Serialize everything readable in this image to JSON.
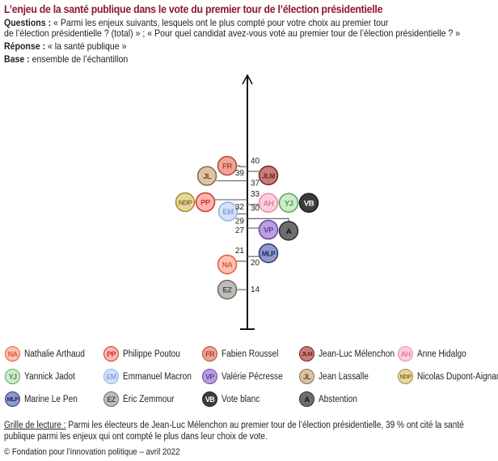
{
  "header": {
    "title": "L’enjeu de la santé publique dans le vote du premier tour de l’élection présidentielle",
    "questions_label": "Questions :",
    "questions_line1": " « Parmi les enjeux suivants, lesquels ont le plus compté pour votre choix au premier tour",
    "questions_line2": "de l’élection présidentielle ? (total) » ; « Pour quel candidat avez-vous voté au premier tour de l’élection présidentielle ? »",
    "response_label": "Réponse :",
    "response_text": " « la santé publique »",
    "base_label": "Base :",
    "base_text": " ensemble de l’échantillon"
  },
  "chart_data": {
    "type": "scatter",
    "title": "L’enjeu de la santé publique dans le vote du premier tour de l’élection présidentielle",
    "unit": "%",
    "axis": "vertical",
    "points": [
      {
        "code": "JLM",
        "name": "Jean-Luc Mélenchon",
        "value": 39,
        "side": "right"
      },
      {
        "code": "FR",
        "name": "Fabien Roussel",
        "value": 40,
        "side": "left"
      },
      {
        "code": "JL",
        "name": "Jean Lassalle",
        "value": 37,
        "side": "left"
      },
      {
        "code": "PP",
        "name": "Philippe Poutou",
        "value": 33,
        "side": "left"
      },
      {
        "code": "NDP",
        "name": "Nicolas Dupont-Aignan",
        "value": 33,
        "side": "left"
      },
      {
        "code": "AH",
        "name": "Anne Hidalgo",
        "value": 32,
        "side": "right"
      },
      {
        "code": "YJ",
        "name": "Yannick Jadot",
        "value": 32,
        "side": "right"
      },
      {
        "code": "VB",
        "name": "Vote blanc",
        "value": 32,
        "side": "right"
      },
      {
        "code": "EM",
        "name": "Emmanuel Macron",
        "value": 30,
        "side": "left"
      },
      {
        "code": "A",
        "name": "Abstention",
        "value": 29,
        "side": "right"
      },
      {
        "code": "VP",
        "name": "Valérie Pécresse",
        "value": 27,
        "side": "right"
      },
      {
        "code": "NA",
        "name": "Nathalie Arthaud",
        "value": 20,
        "side": "left"
      },
      {
        "code": "MLP",
        "name": "Marine Le Pen",
        "value": 21,
        "side": "right"
      },
      {
        "code": "EZ",
        "name": "Éric Zemmour",
        "value": 14,
        "side": "left"
      }
    ],
    "labels": [
      {
        "text": "40",
        "value": 40,
        "side": "right"
      },
      {
        "text": "39",
        "value": 39,
        "side": "left"
      },
      {
        "text": "37",
        "value": 37,
        "side": "right"
      },
      {
        "text": "33",
        "value": 33,
        "side": "right"
      },
      {
        "text": "32",
        "value": 32,
        "side": "left"
      },
      {
        "text": "30",
        "value": 30,
        "side": "right"
      },
      {
        "text": "29",
        "value": 29,
        "side": "left"
      },
      {
        "text": "27",
        "value": 27,
        "side": "left"
      },
      {
        "text": "21",
        "value": 21,
        "side": "left"
      },
      {
        "text": "20",
        "value": 20,
        "side": "right"
      },
      {
        "text": "14",
        "value": 14,
        "side": "right"
      }
    ]
  },
  "candidates": {
    "NA": {
      "code": "NA",
      "name": "Nathalie Arthaud",
      "fill": "#f9c3b3",
      "stroke": "#e5593c",
      "text": "#e5593c"
    },
    "PP": {
      "code": "PP",
      "name": "Philippe Poutou",
      "fill": "#f8b7b4",
      "stroke": "#d9312b",
      "text": "#d9312b"
    },
    "FR": {
      "code": "FR",
      "name": "Fabien Roussel",
      "fill": "#eba596",
      "stroke": "#b84530",
      "text": "#b84530"
    },
    "JLM": {
      "code": "JLM",
      "name": "Jean-Luc Mélenchon",
      "fill": "#c57f78",
      "stroke": "#7f1f1f",
      "text": "#7f1f1f"
    },
    "AH": {
      "code": "AH",
      "name": "Anne Hidalgo",
      "fill": "#fbd0dc",
      "stroke": "#e98aa5",
      "text": "#e07e9c"
    },
    "YJ": {
      "code": "YJ",
      "name": "Yannick Jadot",
      "fill": "#cfeacb",
      "stroke": "#5aa857",
      "text": "#4d9a4a"
    },
    "EM": {
      "code": "EM",
      "name": "Emmanuel Macron",
      "fill": "#d4e2f7",
      "stroke": "#8fb1e3",
      "text": "#7fa5dd"
    },
    "VP": {
      "code": "VP",
      "name": "Valérie Pécresse",
      "fill": "#b9a1dc",
      "stroke": "#6b3fa6",
      "text": "#6b3fa6"
    },
    "JL": {
      "code": "JL",
      "name": "Jean Lassalle",
      "fill": "#dcc3a6",
      "stroke": "#8d6a47",
      "text": "#6f4f31"
    },
    "NDP": {
      "code": "NDP",
      "name": "Nicolas Dupont-Aignan",
      "fill": "#e6d6a0",
      "stroke": "#a88b33",
      "text": "#8e7422"
    },
    "MLP": {
      "code": "MLP",
      "name": "Marine Le Pen",
      "fill": "#8e9ac9",
      "stroke": "#2c3a7a",
      "text": "#1e2b66"
    },
    "EZ": {
      "code": "EZ",
      "name": "Éric Zemmour",
      "fill": "#bdbdb5",
      "stroke": "#6b6b64",
      "text": "#4f4f4a"
    },
    "VB": {
      "code": "VB",
      "name": "Vote blanc",
      "fill": "#3d3d3d",
      "stroke": "#1e1e1e",
      "text": "#ffffff"
    },
    "A": {
      "code": "A",
      "name": "Abstention",
      "fill": "#6e6e6e",
      "stroke": "#2c2c2c",
      "text": "#111111"
    }
  },
  "legend": [
    "NA",
    "PP",
    "FR",
    "JLM",
    "AH",
    "YJ",
    "EM",
    "VP",
    "JL",
    "NDP",
    "MLP",
    "EZ",
    "VB",
    "A"
  ],
  "footer": {
    "note_label": "Grille de lecture :",
    "note_text": " Parmi les électeurs de Jean-Luc Mélenchon au premier tour de l’élection présidentielle, 39 % ont cité la santé publique parmi les enjeux qui ont compté le plus dans leur choix de vote.",
    "copyright": "© Fondation pour l’innovation politique – avril 2022"
  }
}
